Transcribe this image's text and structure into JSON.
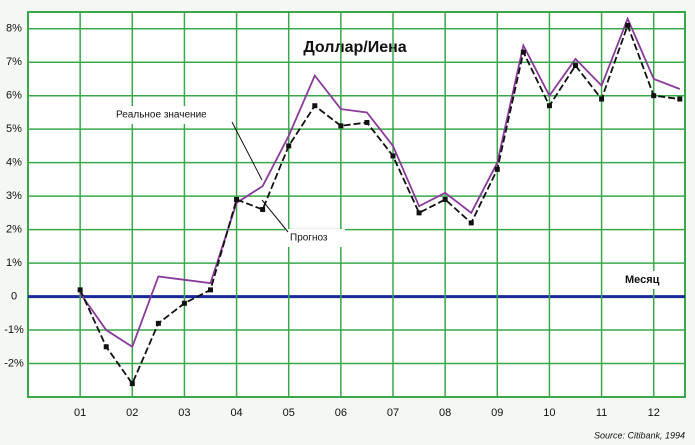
{
  "chart_data": {
    "type": "line",
    "title": "Доллар/Иена",
    "annotations": [
      "Реальное значение",
      "Прогноз",
      "Месяц"
    ],
    "source": "Source: Citibank, 1994",
    "x": [
      1,
      1.5,
      2,
      2.5,
      3,
      3.5,
      4,
      4.5,
      5,
      5.5,
      6,
      6.5,
      7,
      7.5,
      8,
      8.5,
      9,
      9.5,
      10,
      10.5,
      11,
      11.5,
      12,
      12.5
    ],
    "series": [
      {
        "name": "Реальное значение",
        "color": "#8a3a9a",
        "dashed": false,
        "markers": false,
        "values": [
          0.1,
          -1.0,
          -1.5,
          0.6,
          0.5,
          0.4,
          2.8,
          3.3,
          4.8,
          6.6,
          5.6,
          5.5,
          4.5,
          2.7,
          3.1,
          2.5,
          4.0,
          7.5,
          6.0,
          7.1,
          6.3,
          8.3,
          6.5,
          6.2
        ]
      },
      {
        "name": "Прогноз",
        "color": "#111111",
        "dashed": true,
        "markers": true,
        "values": [
          0.2,
          -1.5,
          -2.6,
          -0.8,
          -0.2,
          0.2,
          2.9,
          2.6,
          4.5,
          5.7,
          5.1,
          5.2,
          4.2,
          2.5,
          2.9,
          2.2,
          3.8,
          7.3,
          5.7,
          6.9,
          5.9,
          8.1,
          6.0,
          5.9
        ]
      }
    ],
    "xlim": [
      0,
      12.6
    ],
    "xticks": [
      {
        "value": 1,
        "label": "01"
      },
      {
        "value": 2,
        "label": "02"
      },
      {
        "value": 3,
        "label": "03"
      },
      {
        "value": 4,
        "label": "04"
      },
      {
        "value": 5,
        "label": "05"
      },
      {
        "value": 6,
        "label": "06"
      },
      {
        "value": 7,
        "label": "07"
      },
      {
        "value": 8,
        "label": "08"
      },
      {
        "value": 9,
        "label": "09"
      },
      {
        "value": 10,
        "label": "10"
      },
      {
        "value": 11,
        "label": "11"
      },
      {
        "value": 12,
        "label": "12"
      }
    ],
    "ylim": [
      -3,
      8.5
    ],
    "yticks": [
      {
        "value": -2,
        "label": "-2%"
      },
      {
        "value": -1,
        "label": "-1%"
      },
      0,
      {
        "value": 1,
        "label": "1%"
      },
      {
        "value": 2,
        "label": "2%"
      },
      {
        "value": 3,
        "label": "3%"
      },
      {
        "value": 4,
        "label": "4%"
      },
      {
        "value": 5,
        "label": "5%"
      },
      {
        "value": 6,
        "label": "6%"
      },
      {
        "value": 7,
        "label": "7%"
      },
      {
        "value": 8,
        "label": "8%"
      }
    ],
    "grid": true,
    "grid_color": "#3aa84a",
    "zero_line_color": "#1a2a9a"
  }
}
